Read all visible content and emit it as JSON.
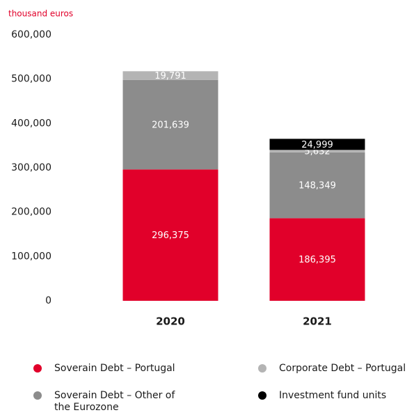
{
  "chart_data": {
    "type": "stacked_bar",
    "y_label": "thousand euros",
    "categories": [
      "2020",
      "2021"
    ],
    "series": [
      {
        "name": "Soverain Debt – Portugal",
        "color": "#e1002a",
        "values": [
          296375,
          186395
        ],
        "value_labels": [
          "296,375",
          "186,395"
        ]
      },
      {
        "name": "Soverain Debt – Other of the Eurozone",
        "color": "#8c8c8c",
        "values": [
          201639,
          148349
        ],
        "value_labels": [
          "201,639",
          "148,349"
        ]
      },
      {
        "name": "Corporate Debt – Portugal",
        "color": "#b4b4b4",
        "values": [
          19791,
          5632
        ],
        "value_labels": [
          "19,791",
          "5,632"
        ]
      },
      {
        "name": "Investment fund units",
        "color": "#000000",
        "values": [
          null,
          24999
        ],
        "value_labels": [
          null,
          "24,999"
        ]
      }
    ],
    "ylim": [
      0,
      600000
    ],
    "yticks": [
      0,
      {
        "value": 100000,
        "label": "100,000"
      },
      {
        "value": 200000,
        "label": "200,000"
      },
      {
        "value": 300000,
        "label": "300,000"
      },
      {
        "value": 400000,
        "label": "400,000"
      },
      {
        "value": 500000,
        "label": "500,000"
      },
      {
        "value": 600000,
        "label": "600,000"
      }
    ]
  }
}
